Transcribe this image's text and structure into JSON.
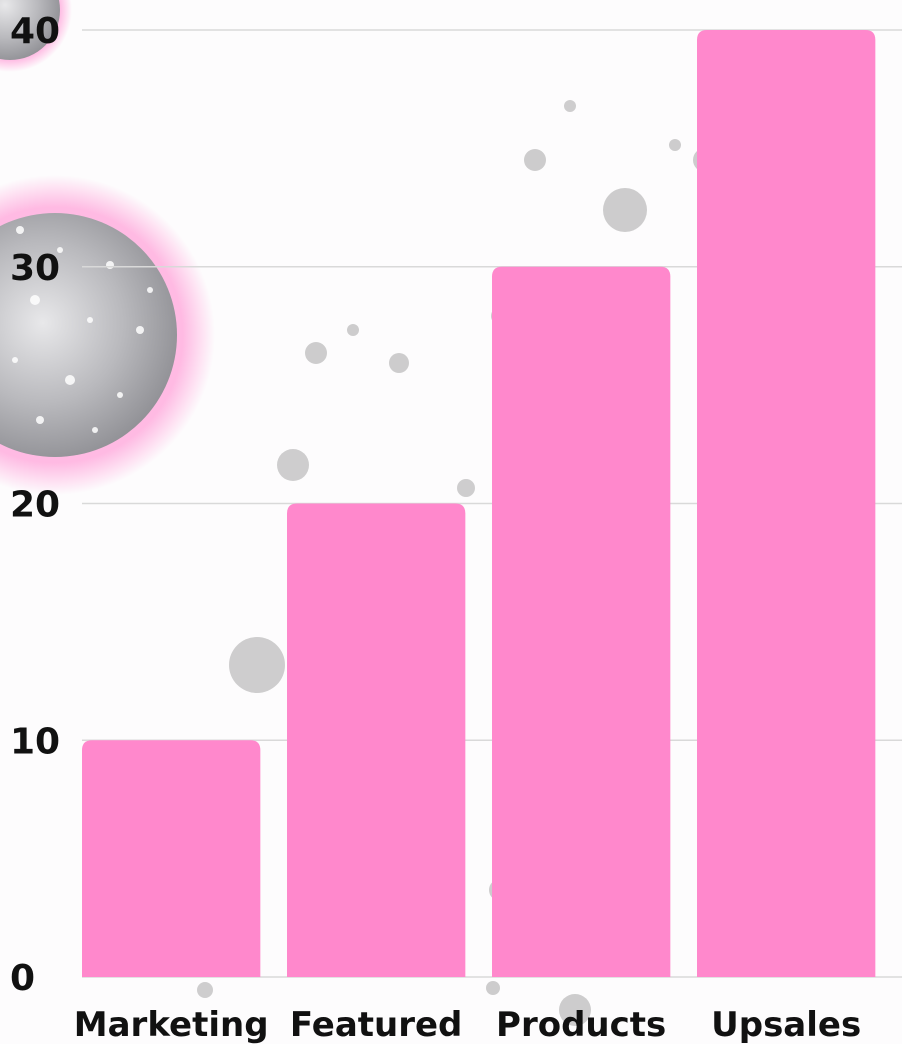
{
  "chart_data": {
    "type": "bar",
    "title": "",
    "xlabel": "",
    "ylabel": "",
    "categories": [
      "Marketing",
      "Featured",
      "Products",
      "Upsales"
    ],
    "values": [
      10,
      20,
      30,
      40
    ],
    "ylim": [
      0,
      40
    ],
    "yticks": [
      "0",
      "10",
      "20",
      "30",
      "40"
    ],
    "grid": true,
    "bar_color": "#ff88cc",
    "grid_color": "#d9d9d9"
  }
}
